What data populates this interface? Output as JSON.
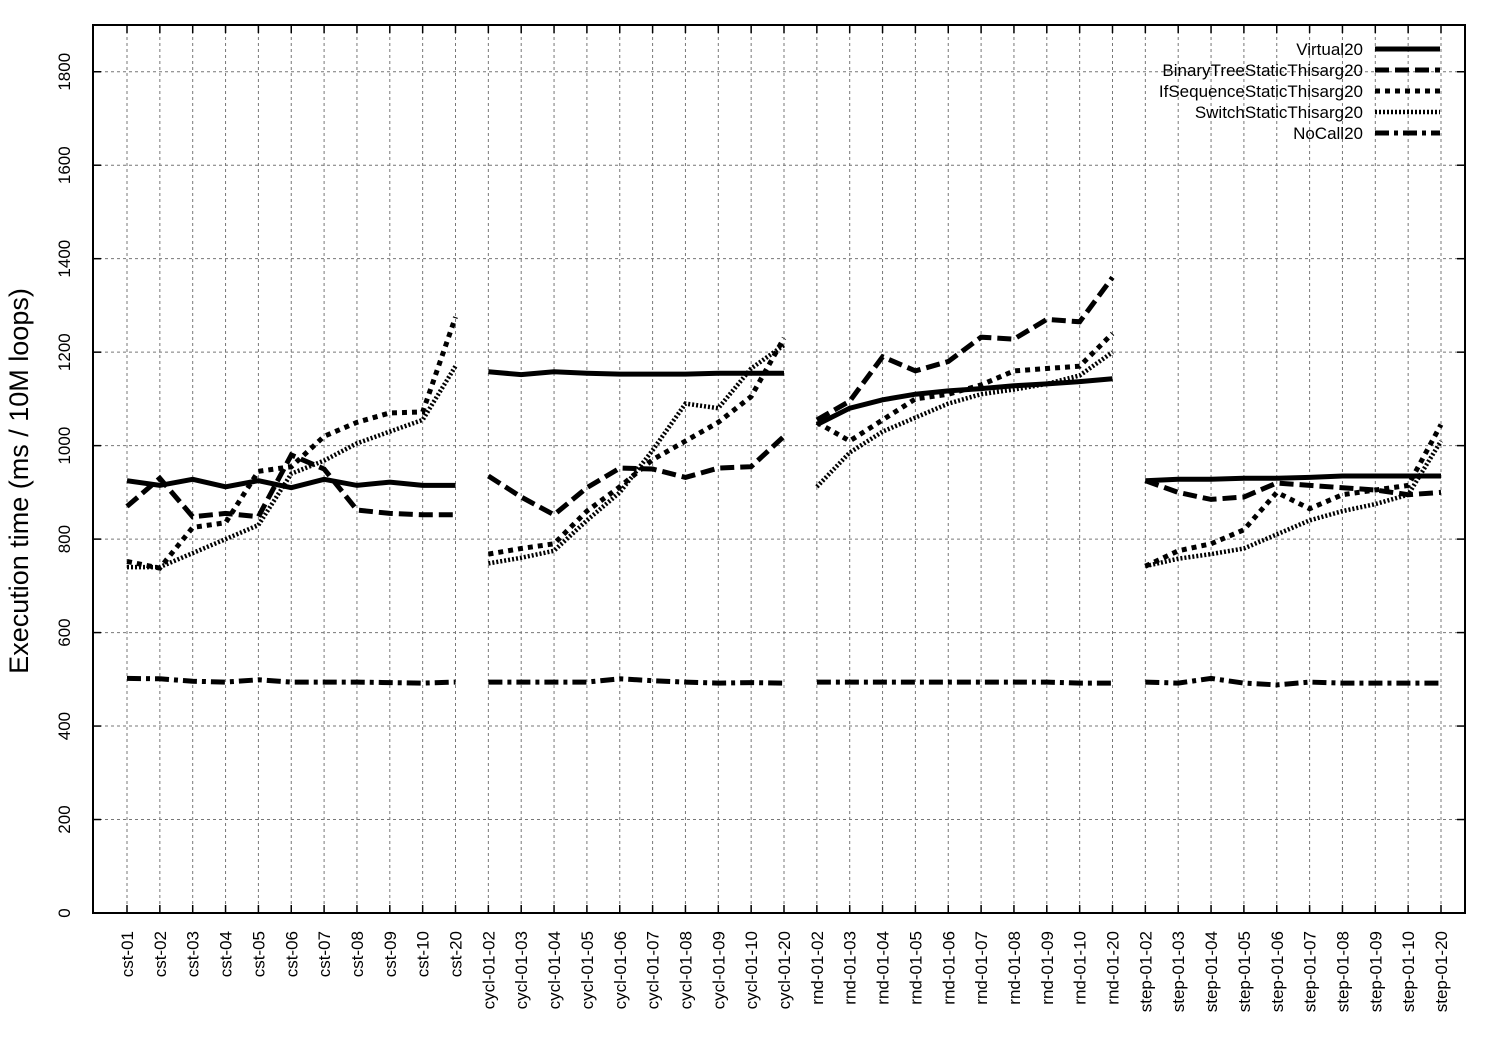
{
  "chart_data": {
    "type": "line",
    "title": "",
    "xlabel": "",
    "ylabel": "Execution time (ms / 10M loops)",
    "ylim": [
      0,
      1900
    ],
    "yticks": [
      0,
      200,
      400,
      600,
      800,
      1000,
      1200,
      1400,
      1600,
      1800
    ],
    "grid": true,
    "legend_position": "top-right",
    "categories": [
      "cst-01",
      "cst-02",
      "cst-03",
      "cst-04",
      "cst-05",
      "cst-06",
      "cst-07",
      "cst-08",
      "cst-09",
      "cst-10",
      "cst-20",
      "cycl-01-02",
      "cycl-01-03",
      "cycl-01-04",
      "cycl-01-05",
      "cycl-01-06",
      "cycl-01-07",
      "cycl-01-08",
      "cycl-01-09",
      "cycl-01-10",
      "cycl-01-20",
      "rnd-01-02",
      "rnd-01-03",
      "rnd-01-04",
      "rnd-01-05",
      "rnd-01-06",
      "rnd-01-07",
      "rnd-01-08",
      "rnd-01-09",
      "rnd-01-10",
      "rnd-01-20",
      "step-01-02",
      "step-01-03",
      "step-01-04",
      "step-01-05",
      "step-01-06",
      "step-01-07",
      "step-01-08",
      "step-01-09",
      "step-01-10",
      "step-01-20"
    ],
    "groups": [
      [
        0,
        10
      ],
      [
        11,
        20
      ],
      [
        21,
        30
      ],
      [
        31,
        40
      ]
    ],
    "series": [
      {
        "name": "Virtual20",
        "style": "solid",
        "values": [
          925,
          915,
          928,
          912,
          925,
          910,
          928,
          915,
          922,
          915,
          915,
          1158,
          1152,
          1158,
          1155,
          1153,
          1153,
          1153,
          1155,
          1155,
          1155,
          1045,
          1080,
          1098,
          1110,
          1117,
          1122,
          1128,
          1132,
          1137,
          1143,
          925,
          928,
          928,
          930,
          930,
          932,
          935,
          935,
          935,
          935
        ]
      },
      {
        "name": "BinaryTreeStaticThisarg20",
        "style": "dashed",
        "values": [
          870,
          930,
          848,
          855,
          848,
          980,
          950,
          862,
          855,
          852,
          852,
          935,
          890,
          852,
          910,
          952,
          950,
          932,
          952,
          955,
          1020,
          1055,
          1095,
          1190,
          1160,
          1180,
          1232,
          1228,
          1270,
          1265,
          1360,
          925,
          900,
          885,
          890,
          920,
          915,
          910,
          905,
          895,
          900
        ]
      },
      {
        "name": "IfSequenceStaticThisarg20",
        "style": "dotted",
        "values": [
          752,
          738,
          825,
          835,
          945,
          955,
          1020,
          1050,
          1070,
          1072,
          1275,
          768,
          780,
          790,
          860,
          912,
          970,
          1010,
          1050,
          1105,
          1230,
          1050,
          1010,
          1055,
          1100,
          1110,
          1130,
          1160,
          1165,
          1170,
          1240,
          742,
          775,
          790,
          820,
          900,
          865,
          895,
          905,
          915,
          1045
        ]
      },
      {
        "name": "SwitchStaticThisarg20",
        "style": "fine-dotted",
        "values": [
          740,
          740,
          770,
          800,
          830,
          940,
          968,
          1005,
          1030,
          1055,
          1170,
          748,
          760,
          775,
          840,
          900,
          990,
          1090,
          1080,
          1165,
          1215,
          912,
          985,
          1030,
          1060,
          1090,
          1110,
          1120,
          1132,
          1150,
          1200,
          742,
          758,
          768,
          780,
          810,
          840,
          860,
          875,
          895,
          1010
        ]
      },
      {
        "name": "NoCall20",
        "style": "dash-dot",
        "values": [
          502,
          501,
          496,
          494,
          499,
          494,
          494,
          494,
          493,
          492,
          494,
          494,
          494,
          494,
          494,
          501,
          497,
          494,
          492,
          493,
          492,
          494,
          494,
          494,
          494,
          494,
          494,
          494,
          494,
          492,
          492,
          494,
          492,
          502,
          492,
          488,
          494,
          492,
          492,
          492,
          492
        ]
      }
    ]
  },
  "colors": {
    "line": "#000000",
    "grid": "#777777",
    "background": "#ffffff"
  }
}
